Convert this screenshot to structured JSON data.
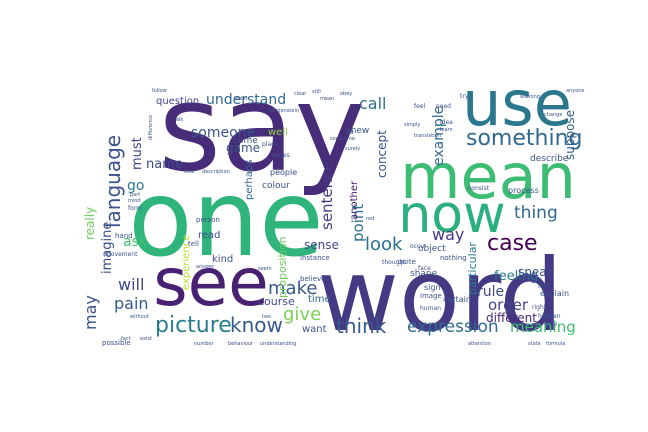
{
  "words": [
    {
      "text": "say",
      "color": "#472c7a"
    },
    {
      "text": "one",
      "color": "#2fb47c"
    },
    {
      "text": "word",
      "color": "#443983"
    },
    {
      "text": "mean",
      "color": "#3dbc74"
    },
    {
      "text": "use",
      "color": "#2a778e"
    },
    {
      "text": "now",
      "color": "#2ab07f"
    },
    {
      "text": "see",
      "color": "#482173"
    },
    {
      "text": "something",
      "color": "#31688e"
    },
    {
      "text": "language",
      "color": "#3b528b"
    },
    {
      "text": "picture",
      "color": "#287d8e"
    },
    {
      "text": "know",
      "color": "#375b8d"
    },
    {
      "text": "think",
      "color": "#38598c"
    },
    {
      "text": "expression",
      "color": "#2f6b8e"
    },
    {
      "text": "meaning",
      "color": "#3fbc73"
    },
    {
      "text": "case",
      "color": "#440154"
    },
    {
      "text": "thing",
      "color": "#31688e"
    },
    {
      "text": "give",
      "color": "#7ad151"
    },
    {
      "text": "make",
      "color": "#38598c"
    },
    {
      "text": "will",
      "color": "#3e4989"
    },
    {
      "text": "pain",
      "color": "#365c8d"
    },
    {
      "text": "may",
      "color": "#3b528b"
    },
    {
      "text": "look",
      "color": "#2c728e"
    },
    {
      "text": "call",
      "color": "#2e6f8e"
    },
    {
      "text": "understand",
      "color": "#31688e"
    },
    {
      "text": "someone",
      "color": "#3a548c"
    },
    {
      "text": "point",
      "color": "#2d708e"
    },
    {
      "text": "sentence",
      "color": "#443a83"
    },
    {
      "text": "way",
      "color": "#453781"
    },
    {
      "text": "example",
      "color": "#31688e"
    },
    {
      "text": "order",
      "color": "#404588"
    },
    {
      "text": "rule",
      "color": "#3e4989"
    },
    {
      "text": "imagine",
      "color": "#3c4f8a"
    },
    {
      "text": "name",
      "color": "#3e4989"
    },
    {
      "text": "go",
      "color": "#2a788e"
    },
    {
      "text": "ask",
      "color": "#46c06f"
    },
    {
      "text": "feeling",
      "color": "#2a788e"
    },
    {
      "text": "different",
      "color": "#482576"
    },
    {
      "text": "speak",
      "color": "#3e4989"
    },
    {
      "text": "must",
      "color": "#404588"
    },
    {
      "text": "really",
      "color": "#6ccd5a"
    },
    {
      "text": "concept",
      "color": "#3b528b"
    },
    {
      "text": "game",
      "color": "#3a548c"
    },
    {
      "text": "sense",
      "color": "#3e4989"
    },
    {
      "text": "proposition",
      "color": "#6ccd5a"
    },
    {
      "text": "particular",
      "color": "#2a788e"
    },
    {
      "text": "suppose",
      "color": "#355f8d"
    },
    {
      "text": "another",
      "color": "#481f70"
    },
    {
      "text": "experience",
      "color": "#b5de2b"
    },
    {
      "text": "course",
      "color": "#3e4989"
    },
    {
      "text": "kind",
      "color": "#3b528b"
    },
    {
      "text": "read",
      "color": "#3b528b"
    },
    {
      "text": "time",
      "color": "#31688e"
    },
    {
      "text": "want",
      "color": "#3b528b"
    },
    {
      "text": "colour",
      "color": "#3b528b"
    },
    {
      "text": "perhaps",
      "color": "#31688e"
    },
    {
      "text": "question",
      "color": "#3e4989"
    },
    {
      "text": "well",
      "color": "#8fd744"
    },
    {
      "text": "people",
      "color": "#3b528b"
    },
    {
      "text": "object",
      "color": "#3b528b"
    },
    {
      "text": "describe",
      "color": "#3b528b"
    },
    {
      "text": "shape",
      "color": "#3b528b"
    },
    {
      "text": "come",
      "color": "#3b528b"
    },
    {
      "text": "shew",
      "color": "#3b528b"
    },
    {
      "text": "process",
      "color": "#3b528b"
    },
    {
      "text": "explain",
      "color": "#3b528b"
    },
    {
      "text": "certain",
      "color": "#3b528b"
    },
    {
      "text": "sign",
      "color": "#3b528b"
    },
    {
      "text": "image",
      "color": "#3b528b"
    },
    {
      "text": "believe",
      "color": "#3b528b"
    },
    {
      "text": "quite",
      "color": "#3b528b"
    },
    {
      "text": "nothing",
      "color": "#3b528b"
    },
    {
      "text": "instance",
      "color": "#3b528b"
    },
    {
      "text": "person",
      "color": "#3b528b"
    },
    {
      "text": "thought",
      "color": "#3b528b"
    },
    {
      "text": "hand",
      "color": "#3b528b"
    },
    {
      "text": "tell",
      "color": "#3b528b"
    },
    {
      "text": "form",
      "color": "#3b528b"
    },
    {
      "text": "possible",
      "color": "#3b528b"
    },
    {
      "text": "movement",
      "color": "#3b528b"
    },
    {
      "text": "face",
      "color": "#3b528b"
    },
    {
      "text": "human",
      "color": "#3b528b"
    },
    {
      "text": "first",
      "color": "#3b528b"
    },
    {
      "text": "right",
      "color": "#3b528b"
    },
    {
      "text": "consist",
      "color": "#3b528b"
    },
    {
      "text": "happen",
      "color": "#3b528b"
    },
    {
      "text": "occur",
      "color": "#3b528b"
    },
    {
      "text": "feel",
      "color": "#3b528b"
    },
    {
      "text": "need",
      "color": "#3b528b"
    },
    {
      "text": "try",
      "color": "#3b528b"
    },
    {
      "text": "idea",
      "color": "#3b528b"
    },
    {
      "text": "series",
      "color": "#3b528b"
    },
    {
      "text": "place",
      "color": "#3b528b"
    },
    {
      "text": "simply",
      "color": "#3b528b"
    },
    {
      "text": "translation",
      "color": "#3b528b"
    },
    {
      "text": "learn",
      "color": "#3b528b"
    },
    {
      "text": "hear",
      "color": "#3b528b"
    },
    {
      "text": "description",
      "color": "#3b528b"
    },
    {
      "text": "difference",
      "color": "#3b528b"
    },
    {
      "text": "follow",
      "color": "#3b528b"
    },
    {
      "text": "understanding",
      "color": "#3b528b"
    },
    {
      "text": "behaviour",
      "color": "#3b528b"
    },
    {
      "text": "number",
      "color": "#3b528b"
    },
    {
      "text": "two",
      "color": "#3b528b"
    },
    {
      "text": "red",
      "color": "#3b528b"
    },
    {
      "text": "without",
      "color": "#3b528b"
    },
    {
      "text": "seem",
      "color": "#3b528b"
    },
    {
      "text": "mind",
      "color": "#3b528b"
    },
    {
      "text": "fact",
      "color": "#3b528b"
    },
    {
      "text": "bring",
      "color": "#3b528b"
    },
    {
      "text": "state",
      "color": "#3b528b"
    },
    {
      "text": "formula",
      "color": "#3b528b"
    },
    {
      "text": "wittgenstein",
      "color": "#3b528b"
    },
    {
      "text": "obey",
      "color": "#3b528b"
    },
    {
      "text": "clear",
      "color": "#3b528b"
    },
    {
      "text": "exist",
      "color": "#3b528b"
    },
    {
      "text": "sometime",
      "color": "#3b528b"
    },
    {
      "text": "surely",
      "color": "#3b528b"
    },
    {
      "text": "still",
      "color": "#3b528b"
    },
    {
      "text": "mean",
      "color": "#3b528b"
    },
    {
      "text": "change",
      "color": "#3b528b"
    },
    {
      "text": "part",
      "color": "#3b528b"
    },
    {
      "text": "answer",
      "color": "#3b528b"
    },
    {
      "text": "letter",
      "color": "#3b528b"
    },
    {
      "text": "anyone",
      "color": "#3b528b"
    },
    {
      "text": "wanting",
      "color": "#3b528b"
    },
    {
      "text": "attention",
      "color": "#3b528b"
    },
    {
      "text": "talk",
      "color": "#3b528b"
    },
    {
      "text": "yet",
      "color": "#3b528b"
    }
  ]
}
